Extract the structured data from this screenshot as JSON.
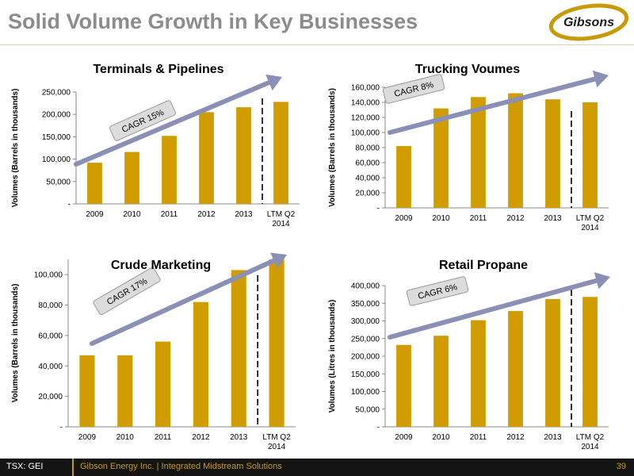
{
  "slide": {
    "title": "Solid Volume Growth in Key Businesses",
    "logo_text": "Gibsons"
  },
  "colors": {
    "bar": "#d19c00",
    "arrow": "#8a8fb5",
    "accent": "#c89a0a",
    "title": "#8c8c8c"
  },
  "chart_data": [
    {
      "type": "bar",
      "title": "Terminals & Pipelines",
      "ylabel": "Volumes (Barrels in thousands)",
      "categories": [
        "2009",
        "2010",
        "2011",
        "2012",
        "2013",
        "LTM Q2 2014"
      ],
      "values": [
        92000,
        116000,
        152000,
        205000,
        216000,
        228000
      ],
      "ylim": [
        0,
        250000
      ],
      "yticks": [
        0,
        50000,
        100000,
        150000,
        200000,
        250000
      ],
      "ytick_labels": [
        "-",
        "50,000",
        "100,000",
        "150,000",
        "200,000",
        "250,000"
      ],
      "annotation": "CAGR 15%"
    },
    {
      "type": "bar",
      "title": "Trucking Voumes",
      "ylabel": "Volumes (Barrels in thousands)",
      "categories": [
        "2009",
        "2010",
        "2011",
        "2012",
        "2013",
        "LTM Q2 2014"
      ],
      "values": [
        82000,
        132000,
        147000,
        152000,
        144000,
        140000
      ],
      "ylim": [
        0,
        160000
      ],
      "yticks": [
        0,
        20000,
        40000,
        60000,
        80000,
        100000,
        120000,
        140000,
        160000
      ],
      "ytick_labels": [
        "-",
        "20,000",
        "40,000",
        "60,000",
        "80,000",
        "100,000",
        "120,000",
        "140,000",
        "160,000"
      ],
      "annotation": "CAGR 8%"
    },
    {
      "type": "bar",
      "title": "Crude Marketing",
      "ylabel": "Volumes (Barrels in thousands)",
      "categories": [
        "2009",
        "2010",
        "2011",
        "2012",
        "2013",
        "LTM Q2 2014"
      ],
      "values": [
        47000,
        47000,
        56000,
        82000,
        103000,
        110000
      ],
      "ylim": [
        0,
        110000
      ],
      "yticks": [
        0,
        20000,
        40000,
        60000,
        80000,
        100000
      ],
      "ytick_labels": [
        "-",
        "20,000",
        "40,000",
        "60,000",
        "80,000",
        "100,000"
      ],
      "annotation": "CAGR 17%"
    },
    {
      "type": "bar",
      "title": "Retail Propane",
      "ylabel": "Volumes (Litres in thousands)",
      "categories": [
        "2009",
        "2010",
        "2011",
        "2012",
        "2013",
        "LTM Q2 2014"
      ],
      "values": [
        232000,
        258000,
        302000,
        328000,
        362000,
        368000
      ],
      "ylim": [
        0,
        400000
      ],
      "yticks": [
        0,
        50000,
        100000,
        150000,
        200000,
        250000,
        300000,
        350000,
        400000
      ],
      "ytick_labels": [
        "-",
        "50,000",
        "100,000",
        "150,000",
        "200,000",
        "250,000",
        "300,000",
        "350,000",
        "400,000"
      ],
      "annotation": "CAGR 6%"
    }
  ],
  "footer": {
    "ticker": "TSX: GEI",
    "company": "Gibson Energy Inc.  |  Integrated Midstream Solutions",
    "page_number": "39"
  }
}
